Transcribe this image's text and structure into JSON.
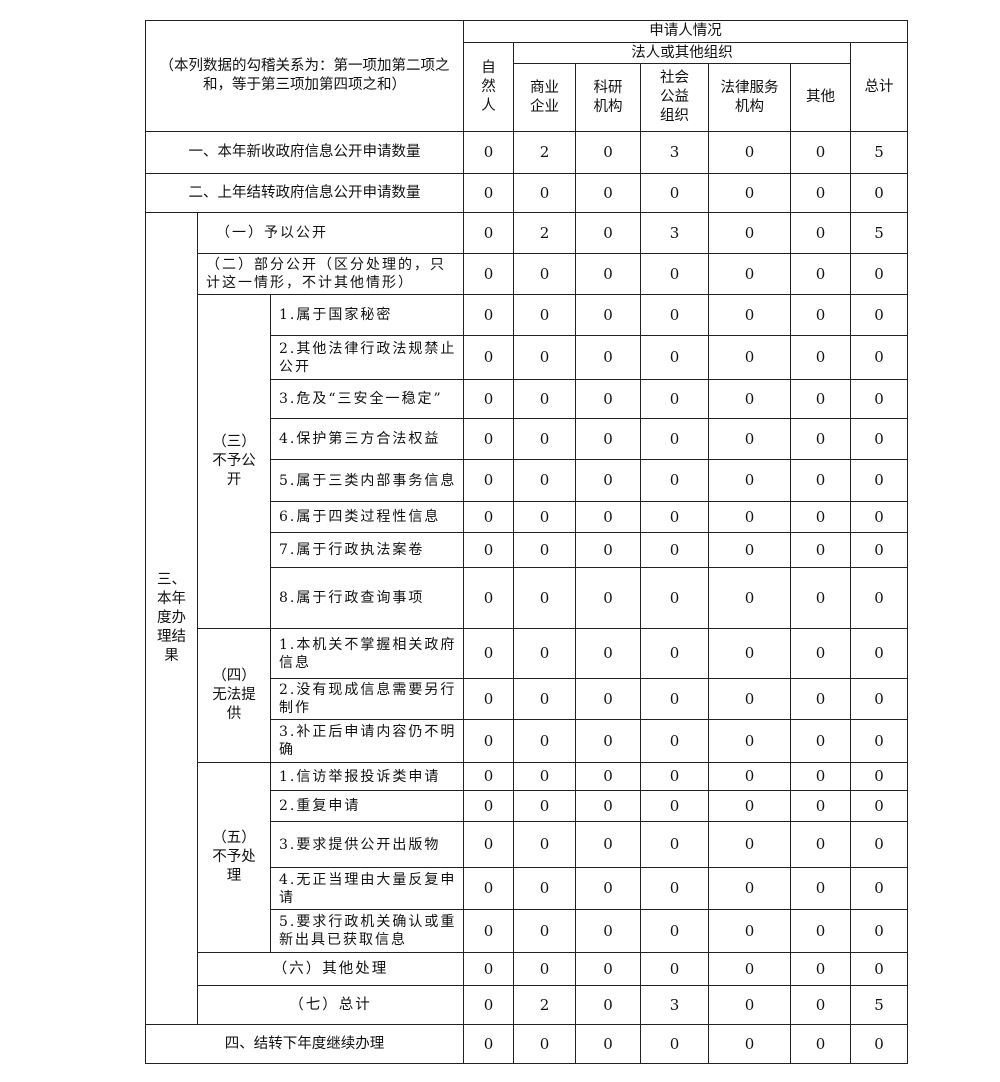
{
  "header": {
    "corner_note": "（本列数据的勾稽关系为：第一项加第二项之和，等于第三项加第四项之和）",
    "applicant_situation": "申请人情况",
    "natural_person": "自然人",
    "legal_orgs": "法人或其他组织",
    "commercial": "商业企业",
    "research": "科研机构",
    "social_welfare": "社会公益组织",
    "legal_service": "法律服务机构",
    "other": "其他",
    "total": "总计"
  },
  "rows": [
    {
      "label": "一、本年新收政府信息公开申请数量",
      "values": [
        0,
        2,
        0,
        3,
        0,
        0,
        5
      ]
    },
    {
      "label": "二、上年结转政府信息公开申请数量",
      "values": [
        0,
        0,
        0,
        0,
        0,
        0,
        0
      ]
    },
    {
      "label": "（一）予以公开",
      "values": [
        0,
        2,
        0,
        3,
        0,
        0,
        5
      ]
    },
    {
      "label": "（二）部分公开（区分处理的，只计这一情形，不计其他情形）",
      "values": [
        0,
        0,
        0,
        0,
        0,
        0,
        0
      ]
    },
    {
      "label": "1.属于国家秘密",
      "values": [
        0,
        0,
        0,
        0,
        0,
        0,
        0
      ]
    },
    {
      "label": "2.其他法律行政法规禁止公开",
      "values": [
        0,
        0,
        0,
        0,
        0,
        0,
        0
      ]
    },
    {
      "label": "3.危及“三安全一稳定”",
      "values": [
        0,
        0,
        0,
        0,
        0,
        0,
        0
      ]
    },
    {
      "label": "4.保护第三方合法权益",
      "values": [
        0,
        0,
        0,
        0,
        0,
        0,
        0
      ]
    },
    {
      "label": "5.属于三类内部事务信息",
      "values": [
        0,
        0,
        0,
        0,
        0,
        0,
        0
      ]
    },
    {
      "label": "6.属于四类过程性信息",
      "values": [
        0,
        0,
        0,
        0,
        0,
        0,
        0
      ]
    },
    {
      "label": "7.属于行政执法案卷",
      "values": [
        0,
        0,
        0,
        0,
        0,
        0,
        0
      ]
    },
    {
      "label": "8.属于行政查询事项",
      "values": [
        0,
        0,
        0,
        0,
        0,
        0,
        0
      ]
    },
    {
      "label": "1.本机关不掌握相关政府信息",
      "values": [
        0,
        0,
        0,
        0,
        0,
        0,
        0
      ]
    },
    {
      "label": "2.没有现成信息需要另行制作",
      "values": [
        0,
        0,
        0,
        0,
        0,
        0,
        0
      ]
    },
    {
      "label": "3.补正后申请内容仍不明确",
      "values": [
        0,
        0,
        0,
        0,
        0,
        0,
        0
      ]
    },
    {
      "label": "1.信访举报投诉类申请",
      "values": [
        0,
        0,
        0,
        0,
        0,
        0,
        0
      ]
    },
    {
      "label": "2.重复申请",
      "values": [
        0,
        0,
        0,
        0,
        0,
        0,
        0
      ]
    },
    {
      "label": "3.要求提供公开出版物",
      "values": [
        0,
        0,
        0,
        0,
        0,
        0,
        0
      ]
    },
    {
      "label": "4.无正当理由大量反复申请",
      "values": [
        0,
        0,
        0,
        0,
        0,
        0,
        0
      ]
    },
    {
      "label": "5.要求行政机关确认或重新出具已获取信息",
      "values": [
        0,
        0,
        0,
        0,
        0,
        0,
        0
      ]
    },
    {
      "label": "（六）其他处理",
      "values": [
        0,
        0,
        0,
        0,
        0,
        0,
        0
      ]
    },
    {
      "label": "（七）总计",
      "values": [
        0,
        2,
        0,
        3,
        0,
        0,
        5
      ]
    },
    {
      "label": "四、结转下年度继续办理",
      "values": [
        0,
        0,
        0,
        0,
        0,
        0,
        0
      ]
    }
  ],
  "groups": {
    "section_three": "三、本年度办理结果",
    "not_disclosed": "（三）不予公开",
    "unable_to_provide": "（四）无法提供",
    "not_processed": "（五）不予处理"
  }
}
